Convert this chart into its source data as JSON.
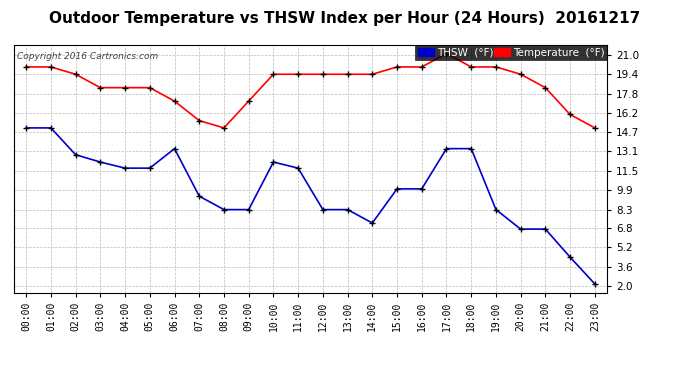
{
  "title": "Outdoor Temperature vs THSW Index per Hour (24 Hours)  20161217",
  "copyright": "Copyright 2016 Cartronics.com",
  "hours": [
    "00:00",
    "01:00",
    "02:00",
    "03:00",
    "04:00",
    "05:00",
    "06:00",
    "07:00",
    "08:00",
    "09:00",
    "10:00",
    "11:00",
    "12:00",
    "13:00",
    "14:00",
    "15:00",
    "16:00",
    "17:00",
    "18:00",
    "19:00",
    "20:00",
    "21:00",
    "22:00",
    "23:00"
  ],
  "temperature": [
    20.0,
    20.0,
    19.4,
    18.3,
    18.3,
    18.3,
    17.2,
    15.6,
    15.0,
    17.2,
    19.4,
    19.4,
    19.4,
    19.4,
    19.4,
    20.0,
    20.0,
    21.1,
    20.0,
    20.0,
    19.4,
    18.3,
    16.1,
    15.0
  ],
  "thsw": [
    15.0,
    15.0,
    12.8,
    12.2,
    11.7,
    11.7,
    13.3,
    9.4,
    8.3,
    8.3,
    12.2,
    11.7,
    8.3,
    8.3,
    7.2,
    10.0,
    10.0,
    13.3,
    13.3,
    8.3,
    6.7,
    6.7,
    4.4,
    2.2
  ],
  "temp_color": "#ff0000",
  "thsw_color": "#0000cc",
  "marker_color": "#000000",
  "yticks": [
    2.0,
    3.6,
    5.2,
    6.8,
    8.3,
    9.9,
    11.5,
    13.1,
    14.7,
    16.2,
    17.8,
    19.4,
    21.0
  ],
  "ylim": [
    1.5,
    21.8
  ],
  "background_color": "#ffffff",
  "plot_bg_color": "#ffffff",
  "grid_color": "#bbbbbb",
  "title_fontsize": 11,
  "legend_thsw_label": "THSW  (°F)",
  "legend_temp_label": "Temperature  (°F)"
}
